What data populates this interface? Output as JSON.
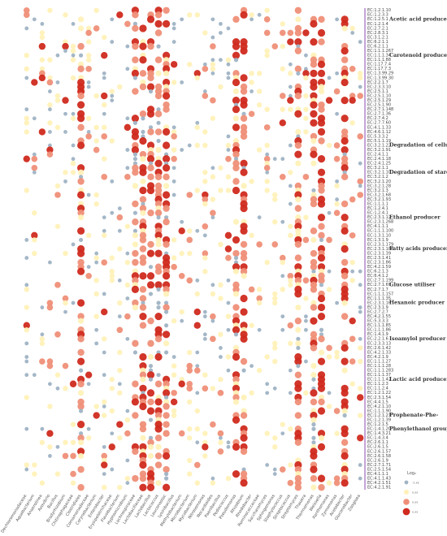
{
  "chart_data": {
    "type": "bubble-heatmap",
    "legend_title": "Log₂",
    "legend_labels": [
      "-1.xx",
      "x.xx",
      "x.xx",
      "x.xx"
    ],
    "legend_colors": [
      "#9fb3c4",
      "#fff1b8",
      "#ef8f78",
      "#d02a1e"
    ],
    "genera": [
      "Dechloromonadaceae",
      "Aquabacterium",
      "Anaerolinea",
      "Azovibrio",
      "Bacillus",
      "Bradyrhizobium",
      "Chitinophagaceae",
      "Clostridiales",
      "Comamonadaceae",
      "Corynebacterium",
      "Enterobacter",
      "Erysipelotrichaceae",
      "Flavobacterium",
      "Hyphomicrobium",
      "Lachnospiraceae",
      "Lactobacillaceae",
      "Lactobacillus",
      "Lactococcus",
      "Leuconostoc",
      "Lysinibacillus",
      "Methylobacterium",
      "Microbacterium",
      "Mycobacterium",
      "Nitrosomonas",
      "Nocardioides",
      "Paenibacillus",
      "Pediococcus",
      "Pseudomonas",
      "Rhizobium",
      "Rhodobacter",
      "Ruminococcaceae",
      "Saccharomyces",
      "Sphingomonas",
      "Staphylococcus",
      "Streptococcus",
      "Streptomyces",
      "Thauera",
      "Thermomonas",
      "Weissella",
      "Xanthomonas",
      "Zymomonas",
      "Acetobacter",
      "Gluconobacter",
      "Zoogloea"
    ],
    "ec_numbers": [
      "EC:1.2.1.10",
      "EC:1.2.3.3",
      "EC:1.2.5.1",
      "EC:1.2.1.4",
      "EC:2.7.2.1",
      "EC:2.8.3.1",
      "EC:3.1.2.1",
      "EC:6.2.1.1",
      "EC:6.2.1.1",
      "EC:1.1.1.267",
      "EC:1.1.1.34",
      "EC:1.1.1.88",
      "EC:1.17.7.4",
      "EC:1.17.7.3",
      "EC:1.3.99.29",
      "EC:1.3.99.30",
      "EC:2.2.1.7",
      "EC:2.3.3.10",
      "EC:2.5.1.1",
      "EC:2.5.1.10",
      "EC:2.5.1.29",
      "EC:2.5.1.90",
      "EC:2.7.1.148",
      "EC:2.7.1.36",
      "EC:2.7.4.2",
      "EC:2.7.7.60",
      "EC:4.1.1.33",
      "EC:4.6.1.12",
      "EC:5.3.3.2",
      "EC:5.1.1.19",
      "EC:3.2.1.22",
      "EC:3.2.1.91",
      "EC:2.4.1.1",
      "EC:2.4.1.18",
      "EC:2.4.1.25",
      "EC:3.2.1.1",
      "EC:3.2.1.10",
      "EC:3.2.1.2",
      "EC:3.2.1.20",
      "EC:3.2.1.28",
      "EC:3.2.1.3",
      "EC:3.2.1.68",
      "EC:3.2.1.93",
      "EC:1.1.1.1",
      "EC:1.2.4.1",
      "EC:1.2.4.1",
      "EC:2.3.1.12",
      "EC:2.3.1.268",
      "EC:4.1.1.1",
      "EC:1.1.1.100",
      "EC:1.3.1.10",
      "EC:1.3.1.9",
      "EC:2.3.1.179",
      "EC:2.3.1.180",
      "EC:2.3.1.39",
      "EC:2.3.1.41",
      "EC:2.3.1.86",
      "EC:4.2.1.59",
      "EC:6.2.1.3",
      "EC:6.4.1.2",
      "EC:2.7.1.199",
      "EC:2.7.1.69",
      "EC:2.7.1.7",
      "EC:1.1.1.157",
      "EC:1.1.1.35",
      "EC:2.3.1.16",
      "EC:2.3.1.9",
      "EC:2.7.2.7",
      "EC:4.2.1.55",
      "EC:5.3.3.3",
      "EC:1.1.1.85",
      "EC:1.1.1.86",
      "EC:1.4.1.9",
      "EC:2.2.1.6",
      "EC:2.3.3.13",
      "EC:2.6.1.42",
      "EC:4.2.1.33",
      "EC:4.2.1.9",
      "EC:1.1.1.27",
      "EC:1.1.1.28",
      "EC:1.1.1.283",
      "EC:1.1.1.37",
      "EC:1.1.1.42",
      "EC:1.1.2.3",
      "EC:1.1.2.4",
      "EC:1.2.1.22",
      "EC:2.3.1.54",
      "EC:4.4.1.5",
      "EC:4.2.1.10",
      "EC:1.1.1.90",
      "EC:1.2.1.21",
      "EC:1.2.1.39",
      "EC:1.2.1.5",
      "EC:1.4.1.20",
      "EC:1.4.3.21",
      "EC:1.4.3.4",
      "EC:2.6.1.1",
      "EC:2.6.1.5",
      "EC:2.6.1.57",
      "EC:2.6.1.58",
      "EC:2.6.1.9",
      "EC:2.7.1.71",
      "EC:2.5.1.54",
      "EC:4.1.1.1",
      "EC:4.1.1.43",
      "EC:4.2.1.51",
      "EC:4.2.1.91"
    ],
    "groups": [
      {
        "label": "Acetic acid producer",
        "start": 0,
        "end": 8
      },
      {
        "label": "Carotenoid producer",
        "start": 9,
        "end": 16
      },
      {
        "label": "",
        "start": 17,
        "end": 28
      },
      {
        "label": "Degradation of cellulose",
        "start": 29,
        "end": 31
      },
      {
        "label": "Degradation of starch",
        "start": 32,
        "end": 42
      },
      {
        "label": "Ethanol producer",
        "start": 43,
        "end": 48
      },
      {
        "label": "Fatty acids producer",
        "start": 49,
        "end": 59
      },
      {
        "label": "Glucose utiliser",
        "start": 60,
        "end": 62
      },
      {
        "label": "Hexanoic producer",
        "start": 63,
        "end": 69
      },
      {
        "label": "Isoamylol producer",
        "start": 70,
        "end": 77
      },
      {
        "label": "Lactic acid producer",
        "start": 78,
        "end": 87
      },
      {
        "label": "Prophenate-Phe-",
        "start": 88,
        "end": 88
      },
      {
        "label": "Phenylethanol group",
        "start": 89,
        "end": 106
      }
    ],
    "group_label_rows": [
      {
        "label": "Acetic acid producer",
        "row": 2
      },
      {
        "label": "Carotenoid producer",
        "row": 10
      },
      {
        "label": "Degradation of cellulose",
        "row": 30
      },
      {
        "label": "Degradation of starch",
        "row": 36
      },
      {
        "label": "Ethanol producer",
        "row": 46
      },
      {
        "label": "Fatty acids producer",
        "row": 53
      },
      {
        "label": "Glucose utiliser",
        "row": 61
      },
      {
        "label": "Hexanoic producer",
        "row": 65
      },
      {
        "label": "Isoamylol producer",
        "row": 73
      },
      {
        "label": "Lactic acid producer",
        "row": 82
      },
      {
        "label": "Prophenate-Phe-",
        "row": 90
      },
      {
        "label": "Phenylethanol group",
        "row": 93
      }
    ],
    "hot_columns": [
      27,
      28,
      7,
      14,
      15,
      16,
      17,
      18,
      35,
      37,
      38,
      41
    ],
    "seed": 17
  }
}
